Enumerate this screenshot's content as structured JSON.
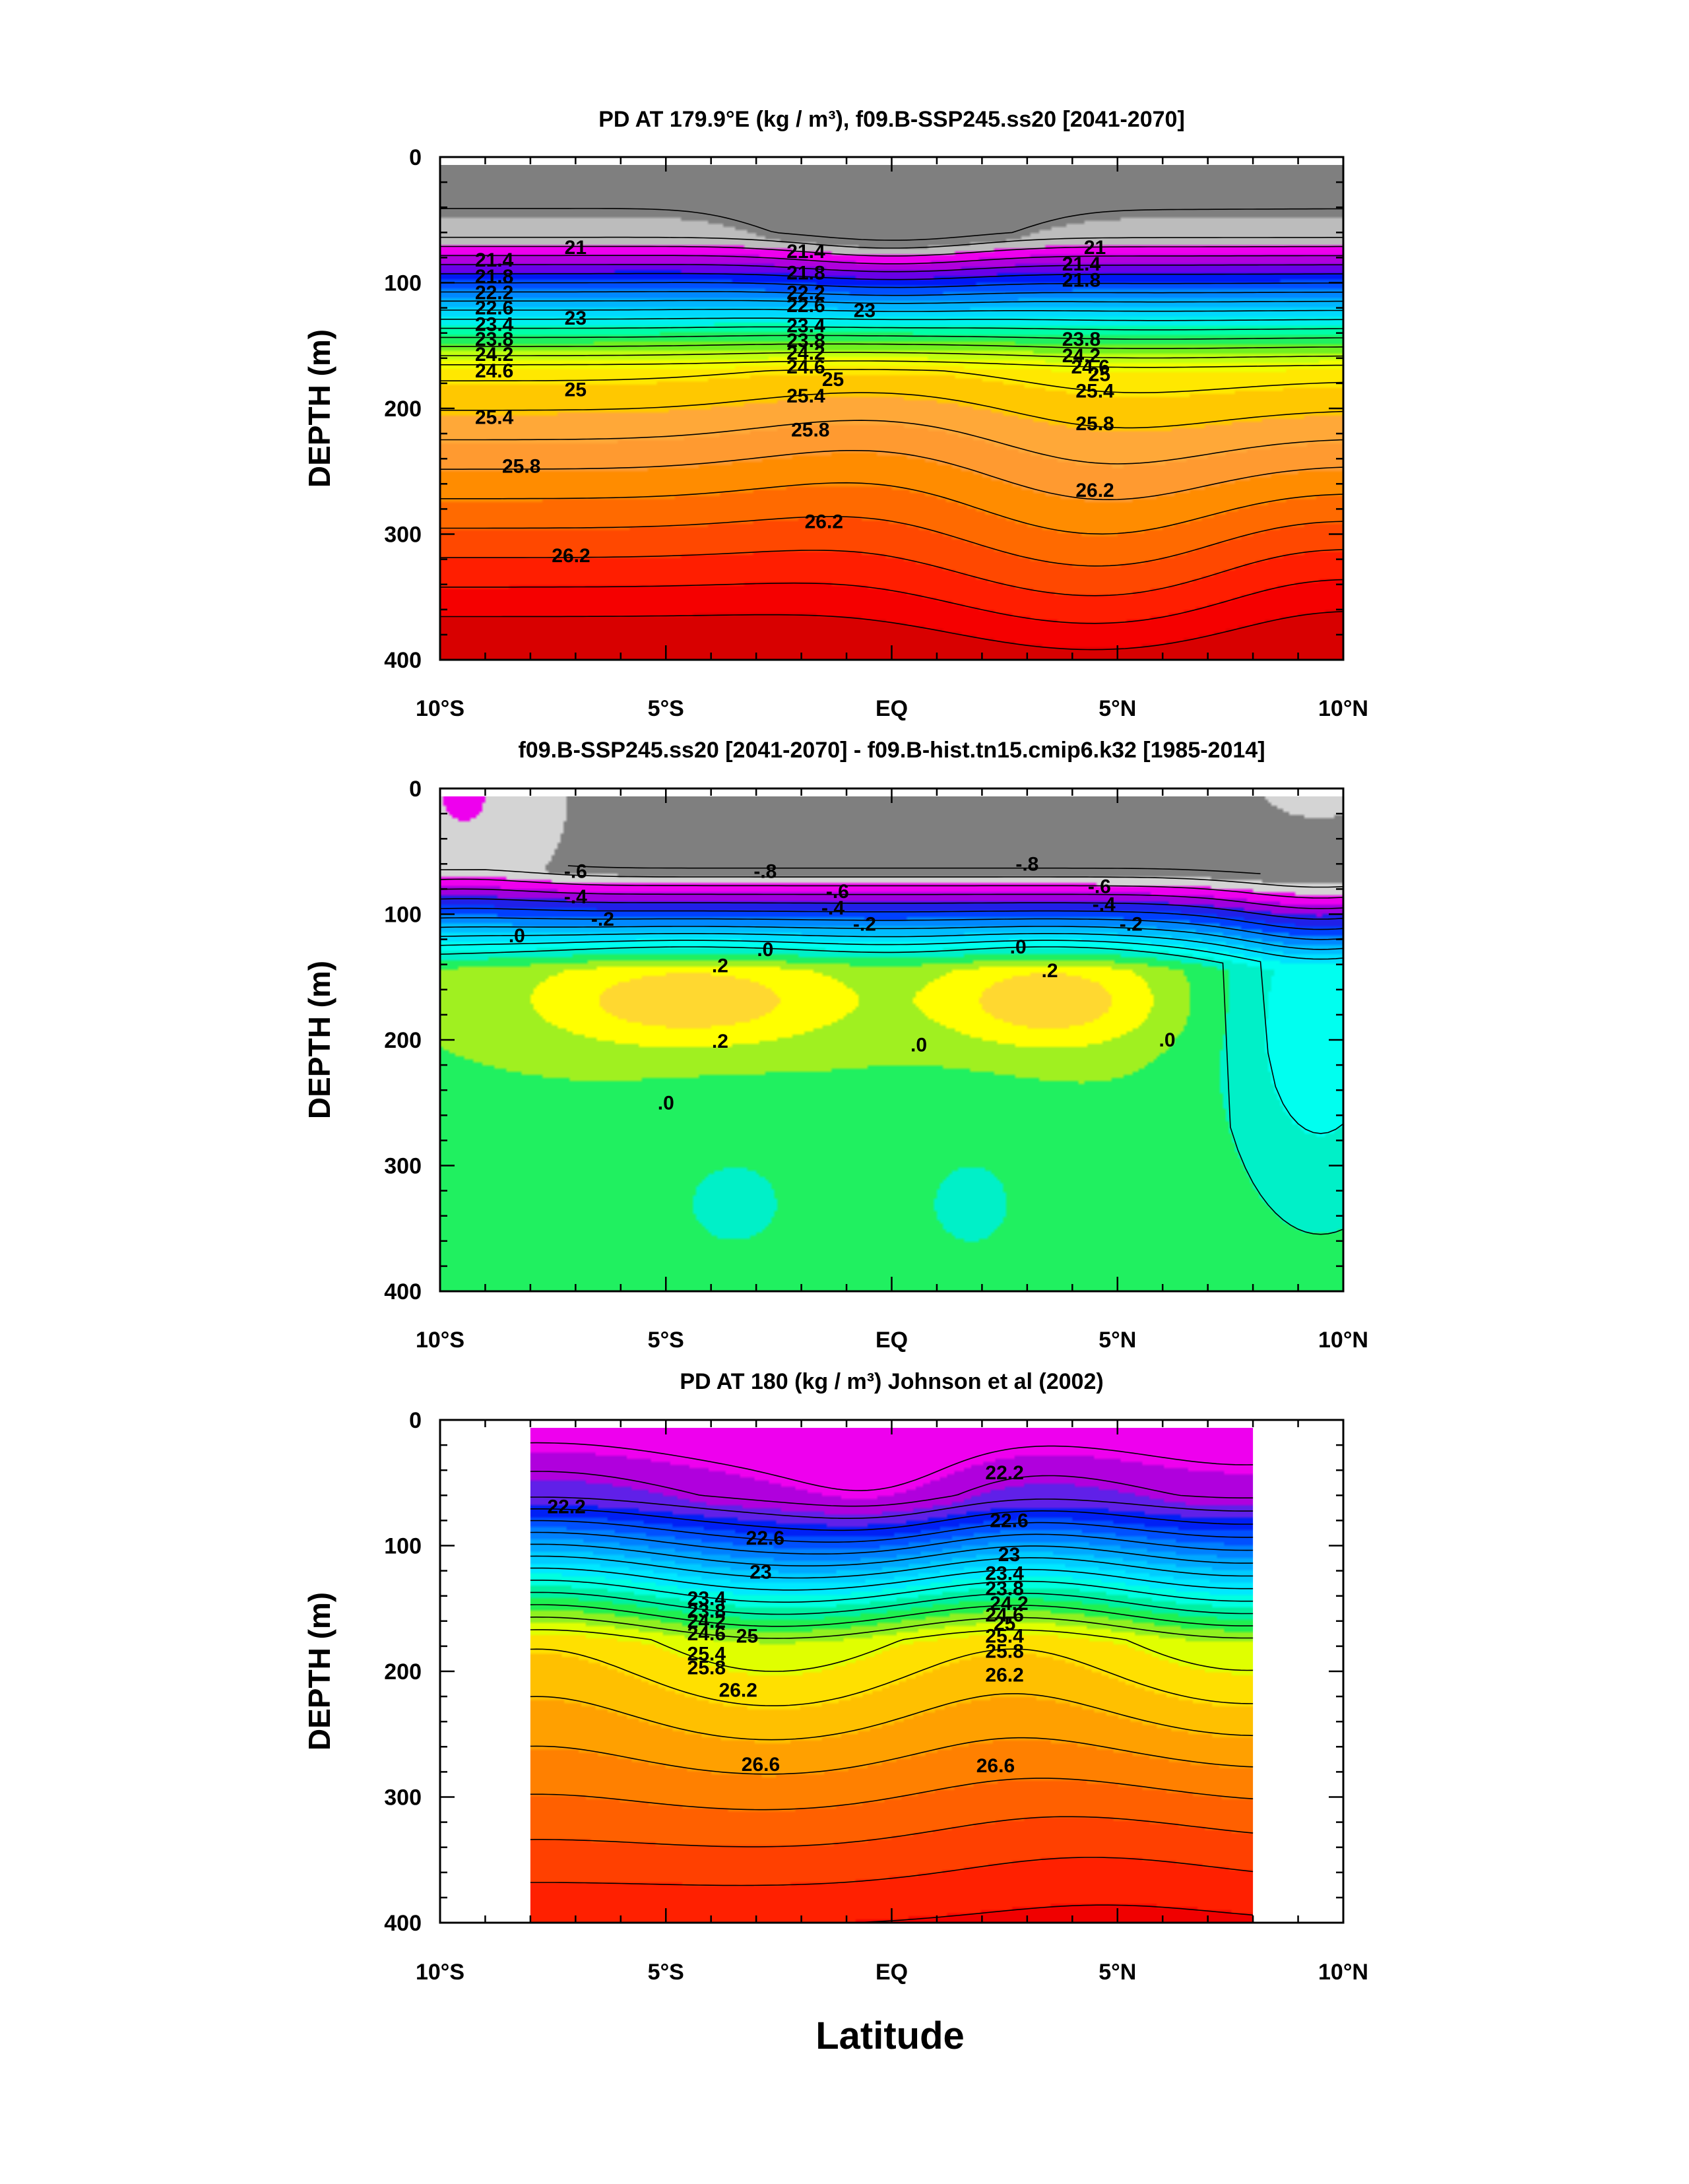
{
  "figure": {
    "xlabel": "Latitude",
    "x_tick_labels": [
      "10°S",
      "5°S",
      "EQ",
      "5°N",
      "10°N"
    ],
    "y_tick_labels": [
      "0",
      "100",
      "200",
      "300",
      "400"
    ]
  },
  "chart_data": [
    {
      "type": "heatmap",
      "title": "PD AT 179.9°E (kg / m³), f09.B-SSP245.ss20 [2041-2070]",
      "ylabel": "DEPTH (m)",
      "xlim": [
        -10,
        10
      ],
      "ylim": [
        400,
        0
      ],
      "grid": false,
      "contour_labels": [
        "21",
        "21.4",
        "21.8",
        "22.2",
        "22.6",
        "23",
        "23.4",
        "23.8",
        "24.2",
        "24.6",
        "25",
        "25.4",
        "25.8",
        "26.2"
      ],
      "colors": [
        "#7f7f7f",
        "#bcbcbc",
        "#ee00ee",
        "#b000dd",
        "#6a00e8",
        "#0018f5",
        "#0050ff",
        "#0088ff",
        "#00b4ff",
        "#00d8ff",
        "#00f0ee",
        "#00ffa8",
        "#20f060",
        "#70f020",
        "#c0ff10",
        "#f0ff00",
        "#ffe800",
        "#ffc800",
        "#ffa838",
        "#ff9a30",
        "#ff8c00",
        "#ff6a00",
        "#ff4800",
        "#ff1e00",
        "#f50000",
        "#d80000"
      ]
    },
    {
      "type": "heatmap",
      "title": "f09.B-SSP245.ss20 [2041-2070] - f09.B-hist.tn15.cmip6.k32 [1985-2014]",
      "ylabel": "DEPTH (m)",
      "xlim": [
        -10,
        10
      ],
      "ylim": [
        400,
        0
      ],
      "grid": false,
      "contour_labels": [
        "-.8",
        "-.6",
        "-.4",
        "-.2",
        ".0",
        ".2"
      ],
      "colors": [
        "#7f7f7f",
        "#d4d4d4",
        "#ee00ee",
        "#a000dd",
        "#2020e8",
        "#0040ff",
        "#0088ff",
        "#00bcff",
        "#00e0ff",
        "#00fff0",
        "#00f0c8",
        "#20f060",
        "#a0f020",
        "#ffff00",
        "#ffd830"
      ]
    },
    {
      "type": "heatmap",
      "title": "PD AT 180 (kg / m³) Johnson et al (2002)",
      "ylabel": "DEPTH (m)",
      "xlim": [
        -10,
        10
      ],
      "ylim": [
        400,
        0
      ],
      "data_xrange": [
        -8,
        8
      ],
      "grid": false,
      "contour_labels": [
        "22.2",
        "22.6",
        "23",
        "23.4",
        "23.8",
        "24.2",
        "24.6",
        "25",
        "25.4",
        "25.8",
        "26.2",
        "26.6"
      ],
      "colors": [
        "#ee00ee",
        "#b000dd",
        "#6020e8",
        "#0020f5",
        "#0050ff",
        "#0080ff",
        "#00a8ff",
        "#00ccff",
        "#00e8ff",
        "#00ffe0",
        "#00f0a0",
        "#20f050",
        "#90f020",
        "#e0ff00",
        "#ffe000",
        "#ffc000",
        "#ffa000",
        "#ff8000",
        "#ff6000",
        "#ff4000",
        "#ff2000",
        "#f00000",
        "#dc0000",
        "#c80000",
        "#b80000"
      ]
    }
  ]
}
